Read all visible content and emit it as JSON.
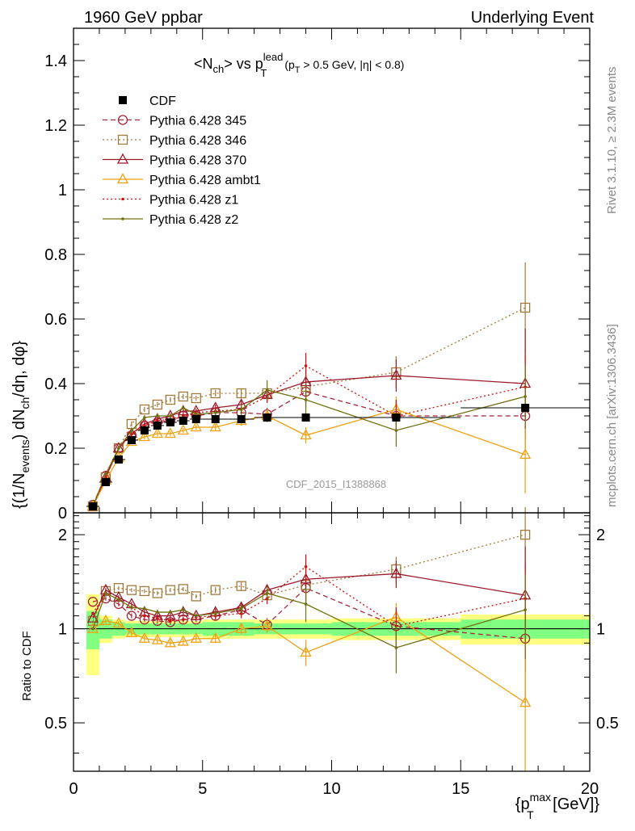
{
  "header": {
    "left": "1960 GeV ppbar",
    "right": "Underlying Event"
  },
  "side_text": {
    "rivet": "Rivet 3.1.10, ≥ 2.3M events",
    "mcplots": "mcplots.cern.ch [arXiv:1306.3436]"
  },
  "watermark": "CDF_2015_I1388868",
  "colors": {
    "band_inner": "#80ff80",
    "band_outer": "#ffff80",
    "cdf": "#000000",
    "s345": "#a5263b",
    "s346": "#a07a3a",
    "s370": "#9b1a2a",
    "ambt1": "#f0a010",
    "z1": "#d01010",
    "z2": "#707010"
  },
  "chart_data": [
    {
      "type": "line",
      "title": "<N_ch> vs p_T^lead (p_T > 0.5 GeV, |η| < 0.8)",
      "title_parts": {
        "main": "<N",
        "main_sub": "ch",
        "vs": "> vs p",
        "vs_sup": "lead",
        "vs_sub": "T",
        "cuts": "(p",
        "cuts_sub": "T",
        "cuts_rest": " > 0.5 GeV, |η| < 0.8)"
      },
      "ylabel": "{(1/N_events) dN_ch/dη, dφ}",
      "ylabel_parts": {
        "a": "{(1/N",
        "a_sub": "events",
        "b": ") dN",
        "b_sub": "ch",
        "c": "/dη, dφ}"
      },
      "xlim": [
        0,
        20
      ],
      "ylim": [
        0,
        1.5
      ],
      "yticks": [
        0,
        0.2,
        0.4,
        0.6,
        0.8,
        1,
        1.2,
        1.4
      ],
      "ytick_labels": [
        "0",
        "0.2",
        "0.4",
        "0.6",
        "0.8",
        "1",
        "1.2",
        "1.4"
      ],
      "legend_position": "top-left",
      "reference": {
        "name": "CDF",
        "x": [
          0.75,
          1.25,
          1.75,
          2.25,
          2.75,
          3.25,
          3.75,
          4.25,
          4.75,
          5.5,
          6.5,
          7.5,
          9.0,
          12.5,
          17.5
        ],
        "y": [
          0.02,
          0.095,
          0.165,
          0.225,
          0.255,
          0.27,
          0.28,
          0.285,
          0.29,
          0.29,
          0.29,
          0.295,
          0.295,
          0.295,
          0.325
        ],
        "xerr": [
          0.25,
          0.25,
          0.25,
          0.25,
          0.25,
          0.25,
          0.25,
          0.25,
          0.25,
          0.5,
          0.5,
          0.5,
          1.0,
          2.5,
          2.5
        ]
      },
      "series": [
        {
          "name": "Pythia 6.428 345",
          "key": "s345",
          "marker": "circle",
          "dash": "6,4",
          "x": [
            0.75,
            1.25,
            1.75,
            2.25,
            2.75,
            3.25,
            3.75,
            4.25,
            4.75,
            5.5,
            6.5,
            7.5,
            9.0,
            12.5,
            17.5
          ],
          "y": [
            0.025,
            0.115,
            0.2,
            0.24,
            0.27,
            0.28,
            0.285,
            0.3,
            0.3,
            0.31,
            0.31,
            0.305,
            0.375,
            0.3,
            0.3
          ],
          "err": [
            0,
            0.005,
            0.008,
            0.008,
            0.008,
            0.008,
            0.008,
            0.008,
            0.008,
            0.01,
            0.015,
            0.02,
            0.05,
            0.05,
            0.1
          ]
        },
        {
          "name": "Pythia 6.428 346",
          "key": "s346",
          "marker": "square",
          "dash": "2,3",
          "x": [
            0.75,
            1.25,
            1.75,
            2.25,
            2.75,
            3.25,
            3.75,
            4.25,
            4.75,
            5.5,
            6.5,
            7.5,
            9.0,
            12.5,
            17.5
          ],
          "y": [
            0.02,
            0.11,
            0.2,
            0.275,
            0.32,
            0.335,
            0.35,
            0.36,
            0.355,
            0.37,
            0.37,
            0.37,
            0.39,
            0.435,
            0.635
          ],
          "err": [
            0,
            0.005,
            0.008,
            0.008,
            0.008,
            0.008,
            0.008,
            0.008,
            0.008,
            0.01,
            0.015,
            0.02,
            0.05,
            0.05,
            0.14
          ]
        },
        {
          "name": "Pythia 6.428 370",
          "key": "s370",
          "marker": "triangle",
          "dash": "",
          "x": [
            0.75,
            1.25,
            1.75,
            2.25,
            2.75,
            3.25,
            3.75,
            4.25,
            4.75,
            5.5,
            6.5,
            7.5,
            9.0,
            12.5,
            17.5
          ],
          "y": [
            0.02,
            0.11,
            0.2,
            0.245,
            0.275,
            0.29,
            0.3,
            0.315,
            0.315,
            0.325,
            0.335,
            0.365,
            0.405,
            0.425,
            0.4
          ],
          "err": [
            0,
            0.005,
            0.008,
            0.008,
            0.008,
            0.008,
            0.008,
            0.008,
            0.008,
            0.01,
            0.015,
            0.02,
            0.05,
            0.05,
            0.17
          ]
        },
        {
          "name": "Pythia 6.428 ambt1",
          "key": "ambt1",
          "marker": "triangle",
          "dash": "",
          "x": [
            0.75,
            1.25,
            1.75,
            2.25,
            2.75,
            3.25,
            3.75,
            4.25,
            4.75,
            5.5,
            6.5,
            7.5,
            9.0,
            12.5,
            17.5
          ],
          "y": [
            0.02,
            0.1,
            0.17,
            0.22,
            0.235,
            0.245,
            0.245,
            0.255,
            0.265,
            0.265,
            0.285,
            0.3,
            0.24,
            0.32,
            0.18
          ],
          "err": [
            0,
            0.005,
            0.008,
            0.008,
            0.008,
            0.008,
            0.008,
            0.008,
            0.008,
            0.01,
            0.015,
            0.02,
            0.025,
            0.04,
            0.12
          ]
        },
        {
          "name": "Pythia 6.428 z1",
          "key": "z1",
          "marker": "dot",
          "dash": "2,3",
          "x": [
            0.75,
            1.25,
            1.75,
            2.25,
            2.75,
            3.25,
            3.75,
            4.25,
            4.75,
            5.5,
            6.5,
            7.5,
            9.0,
            12.5,
            17.5
          ],
          "y": [
            0.02,
            0.11,
            0.2,
            0.245,
            0.27,
            0.285,
            0.29,
            0.3,
            0.31,
            0.315,
            0.32,
            0.36,
            0.455,
            0.3,
            0.39
          ],
          "err": [
            0,
            0.005,
            0.008,
            0.008,
            0.008,
            0.008,
            0.008,
            0.008,
            0.008,
            0.01,
            0.015,
            0.02,
            0.04,
            0.05,
            0.1
          ]
        },
        {
          "name": "Pythia 6.428 z2",
          "key": "z2",
          "marker": "dot",
          "dash": "",
          "x": [
            0.75,
            1.25,
            1.75,
            2.25,
            2.75,
            3.25,
            3.75,
            4.25,
            4.75,
            5.5,
            6.5,
            7.5,
            9.0,
            12.5,
            17.5
          ],
          "y": [
            0.02,
            0.12,
            0.2,
            0.255,
            0.295,
            0.3,
            0.3,
            0.325,
            0.305,
            0.31,
            0.32,
            0.38,
            0.35,
            0.255,
            0.36
          ],
          "err": [
            0,
            0.005,
            0.008,
            0.008,
            0.008,
            0.008,
            0.008,
            0.008,
            0.008,
            0.01,
            0.015,
            0.03,
            0.05,
            0.05,
            0.1
          ]
        }
      ]
    },
    {
      "type": "line",
      "title": "",
      "ylabel": "Ratio to CDF",
      "xlabel": "{p_T^max [GeV]}",
      "xlabel_parts": {
        "a": "{p",
        "a_sub": "T",
        "a_sup": "max",
        "b": " [GeV]}"
      },
      "xlim": [
        0,
        20
      ],
      "ylim": [
        0.35,
        2.35
      ],
      "xticks": [
        0,
        5,
        10,
        15,
        20
      ],
      "xtick_labels": [
        "0",
        "5",
        "10",
        "15",
        "20"
      ],
      "yticks": [
        0.5,
        1,
        2
      ],
      "ytick_labels": [
        "0.5",
        "1",
        "2"
      ],
      "bands": {
        "inner_halfwidth": [
          0.14,
          0.07,
          0.05,
          0.04,
          0.04,
          0.04,
          0.04,
          0.04,
          0.04,
          0.05,
          0.05,
          0.04,
          0.04,
          0.05,
          0.07
        ],
        "outer_halfwidth": [
          0.29,
          0.1,
          0.07,
          0.06,
          0.06,
          0.06,
          0.06,
          0.06,
          0.06,
          0.07,
          0.07,
          0.07,
          0.07,
          0.08,
          0.11
        ]
      },
      "series": [
        {
          "key": "s345",
          "y": [
            1.22,
            1.25,
            1.2,
            1.1,
            1.07,
            1.06,
            1.05,
            1.07,
            1.07,
            1.1,
            1.15,
            1.03,
            1.35,
            1.02,
            0.93
          ],
          "err": [
            0,
            0.02,
            0.02,
            0.02,
            0.02,
            0.02,
            0.02,
            0.02,
            0.02,
            0.03,
            0.04,
            0.05,
            0.15,
            0.15,
            0.35
          ]
        },
        {
          "key": "s346",
          "y": [
            1.06,
            1.32,
            1.35,
            1.33,
            1.32,
            1.3,
            1.33,
            1.34,
            1.27,
            1.33,
            1.37,
            1.28,
            1.38,
            1.55,
            2.0
          ],
          "err": [
            0,
            0.02,
            0.02,
            0.02,
            0.02,
            0.02,
            0.02,
            0.02,
            0.02,
            0.03,
            0.04,
            0.05,
            0.15,
            0.15,
            0.45
          ]
        },
        {
          "key": "s370",
          "y": [
            1.08,
            1.33,
            1.26,
            1.2,
            1.13,
            1.1,
            1.1,
            1.13,
            1.1,
            1.13,
            1.17,
            1.33,
            1.44,
            1.5,
            1.28
          ],
          "err": [
            0,
            0.02,
            0.02,
            0.02,
            0.02,
            0.02,
            0.02,
            0.02,
            0.02,
            0.03,
            0.04,
            0.05,
            0.15,
            0.15,
            0.55
          ]
        },
        {
          "key": "ambt1",
          "y": [
            1.0,
            1.06,
            1.04,
            0.97,
            0.93,
            0.92,
            0.9,
            0.91,
            0.93,
            0.93,
            1.0,
            1.02,
            0.84,
            1.09,
            0.58
          ],
          "err": [
            0,
            0.02,
            0.02,
            0.02,
            0.02,
            0.02,
            0.02,
            0.02,
            0.02,
            0.03,
            0.04,
            0.05,
            0.08,
            0.12,
            0.4
          ]
        },
        {
          "key": "z1",
          "y": [
            1.12,
            1.3,
            1.24,
            1.17,
            1.1,
            1.08,
            1.06,
            1.07,
            1.09,
            1.1,
            1.12,
            1.25,
            1.58,
            1.02,
            1.25
          ],
          "err": [
            0,
            0.02,
            0.02,
            0.02,
            0.02,
            0.02,
            0.02,
            0.02,
            0.02,
            0.03,
            0.04,
            0.05,
            0.15,
            0.15,
            0.35
          ]
        },
        {
          "key": "z2",
          "y": [
            1.0,
            1.3,
            1.24,
            1.17,
            1.16,
            1.13,
            1.13,
            1.15,
            1.1,
            1.12,
            1.16,
            1.3,
            1.2,
            0.87,
            1.15
          ],
          "err": [
            0,
            0.02,
            0.02,
            0.02,
            0.02,
            0.02,
            0.02,
            0.02,
            0.02,
            0.03,
            0.04,
            0.06,
            0.15,
            0.15,
            0.35
          ]
        }
      ]
    }
  ]
}
